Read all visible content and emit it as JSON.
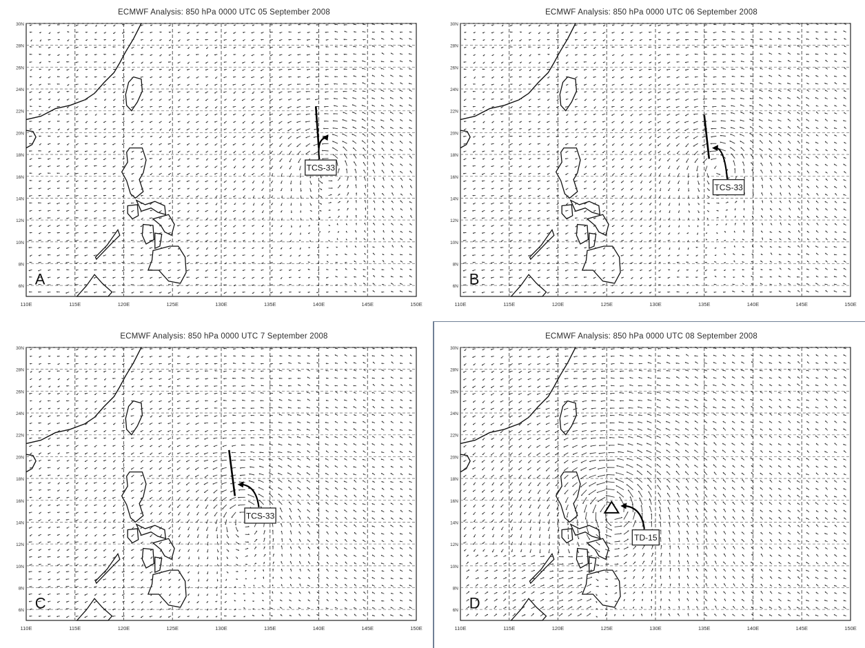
{
  "panels": [
    {
      "id": "A",
      "title": "ECMWF Analysis: 850 hPa 0000 UTC 05 September 2008",
      "letter": "A",
      "lon_ticks": [
        "110E",
        "115E",
        "120E",
        "125E",
        "130E",
        "135E",
        "140E",
        "145E",
        "150E"
      ],
      "lat_ticks": [
        "6N",
        "8N",
        "10N",
        "12N",
        "14N",
        "16N",
        "18N",
        "20N",
        "22N",
        "24N",
        "26N",
        "28N",
        "30N"
      ],
      "annotation": {
        "label": "TCS-33",
        "lon": 140.2,
        "lat": 16.8
      },
      "trough": {
        "lon1": 139.7,
        "lat1": 22.4,
        "lon2": 140.0,
        "lat2": 18.6
      },
      "marker": null,
      "vortex": {
        "lon": 141.0,
        "lat": 17.0,
        "strength": 0.8
      }
    },
    {
      "id": "B",
      "title": "ECMWF Analysis: 850 hPa 0000 UTC 06 September 2008",
      "letter": "B",
      "lon_ticks": [
        "110E",
        "115E",
        "120E",
        "125E",
        "130E",
        "135E",
        "140E",
        "145E",
        "150E"
      ],
      "lat_ticks": [
        "6N",
        "8N",
        "10N",
        "12N",
        "14N",
        "16N",
        "18N",
        "20N",
        "22N",
        "24N",
        "26N",
        "28N",
        "30N"
      ],
      "annotation": {
        "label": "TCS-33",
        "lon": 137.5,
        "lat": 15.0
      },
      "trough": {
        "lon1": 135.0,
        "lat1": 21.6,
        "lon2": 135.5,
        "lat2": 17.6
      },
      "marker": null,
      "vortex": {
        "lon": 136.5,
        "lat": 17.0,
        "strength": 0.8
      }
    },
    {
      "id": "C",
      "title": "ECMWF Analysis: 850 hPa 0000 UTC 7 September 2008",
      "letter": "C",
      "lon_ticks": [
        "110E",
        "115E",
        "120E",
        "125E",
        "130E",
        "135E",
        "140E",
        "145E",
        "150E"
      ],
      "lat_ticks": [
        "6N",
        "8N",
        "10N",
        "12N",
        "14N",
        "16N",
        "18N",
        "20N",
        "22N",
        "24N",
        "26N",
        "28N",
        "30N"
      ],
      "annotation": {
        "label": "TCS-33",
        "lon": 134.0,
        "lat": 14.6
      },
      "trough": {
        "lon1": 130.8,
        "lat1": 20.6,
        "lon2": 131.4,
        "lat2": 16.4
      },
      "marker": null,
      "vortex": {
        "lon": 132.5,
        "lat": 14.5,
        "strength": 0.9
      }
    },
    {
      "id": "D",
      "title": "ECMWF Analysis: 850 hPa 0000 UTC 08 September 2008",
      "letter": "D",
      "lon_ticks": [
        "110E",
        "115E",
        "120E",
        "125E",
        "130E",
        "135E",
        "140E",
        "145E",
        "150E"
      ],
      "lat_ticks": [
        "6N",
        "8N",
        "10N",
        "12N",
        "14N",
        "16N",
        "18N",
        "20N",
        "22N",
        "24N",
        "26N",
        "28N",
        "30N"
      ],
      "annotation": {
        "label": "TD-15",
        "lon": 129.0,
        "lat": 12.6
      },
      "trough": null,
      "marker": {
        "lon": 125.5,
        "lat": 15.3
      },
      "vortex": {
        "lon": 125.6,
        "lat": 15.2,
        "strength": 1.6
      }
    }
  ]
}
